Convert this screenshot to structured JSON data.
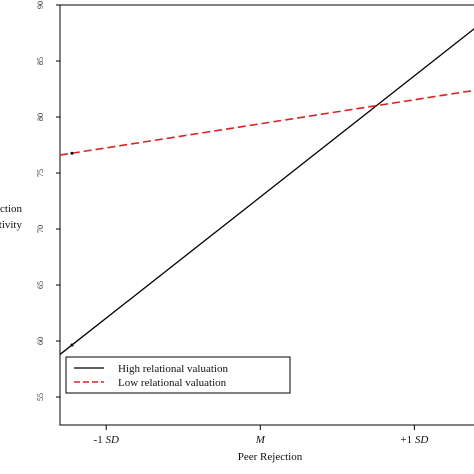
{
  "chart_data": {
    "type": "line",
    "title": "",
    "xlabel": "Peer Rejection",
    "ylabel_lines": [
      "ction",
      "tivity"
    ],
    "x_tick_labels": [
      {
        "prefix": "-1 ",
        "em": "SD"
      },
      {
        "prefix": "",
        "em": "M"
      },
      {
        "prefix": "+1 ",
        "em": "SD"
      }
    ],
    "x_positions": [
      -1,
      0,
      1
    ],
    "xlim": [
      -1.3,
      1.4
    ],
    "ylim": [
      52.5,
      90
    ],
    "y_ticks": [
      55,
      60,
      65,
      70,
      75,
      80,
      85,
      90
    ],
    "grid": false,
    "legend_position": "bottom-left",
    "series": [
      {
        "name": "High relational valuation",
        "color": "#000000",
        "dash": "solid",
        "x": [
          -1.3,
          1.4
        ],
        "y": [
          58.8,
          88.0
        ]
      },
      {
        "name": "Low relational valuation",
        "color": "#dd2222",
        "dash": "dashed",
        "x": [
          -1.3,
          1.4
        ],
        "y": [
          76.6,
          82.4
        ]
      }
    ]
  }
}
